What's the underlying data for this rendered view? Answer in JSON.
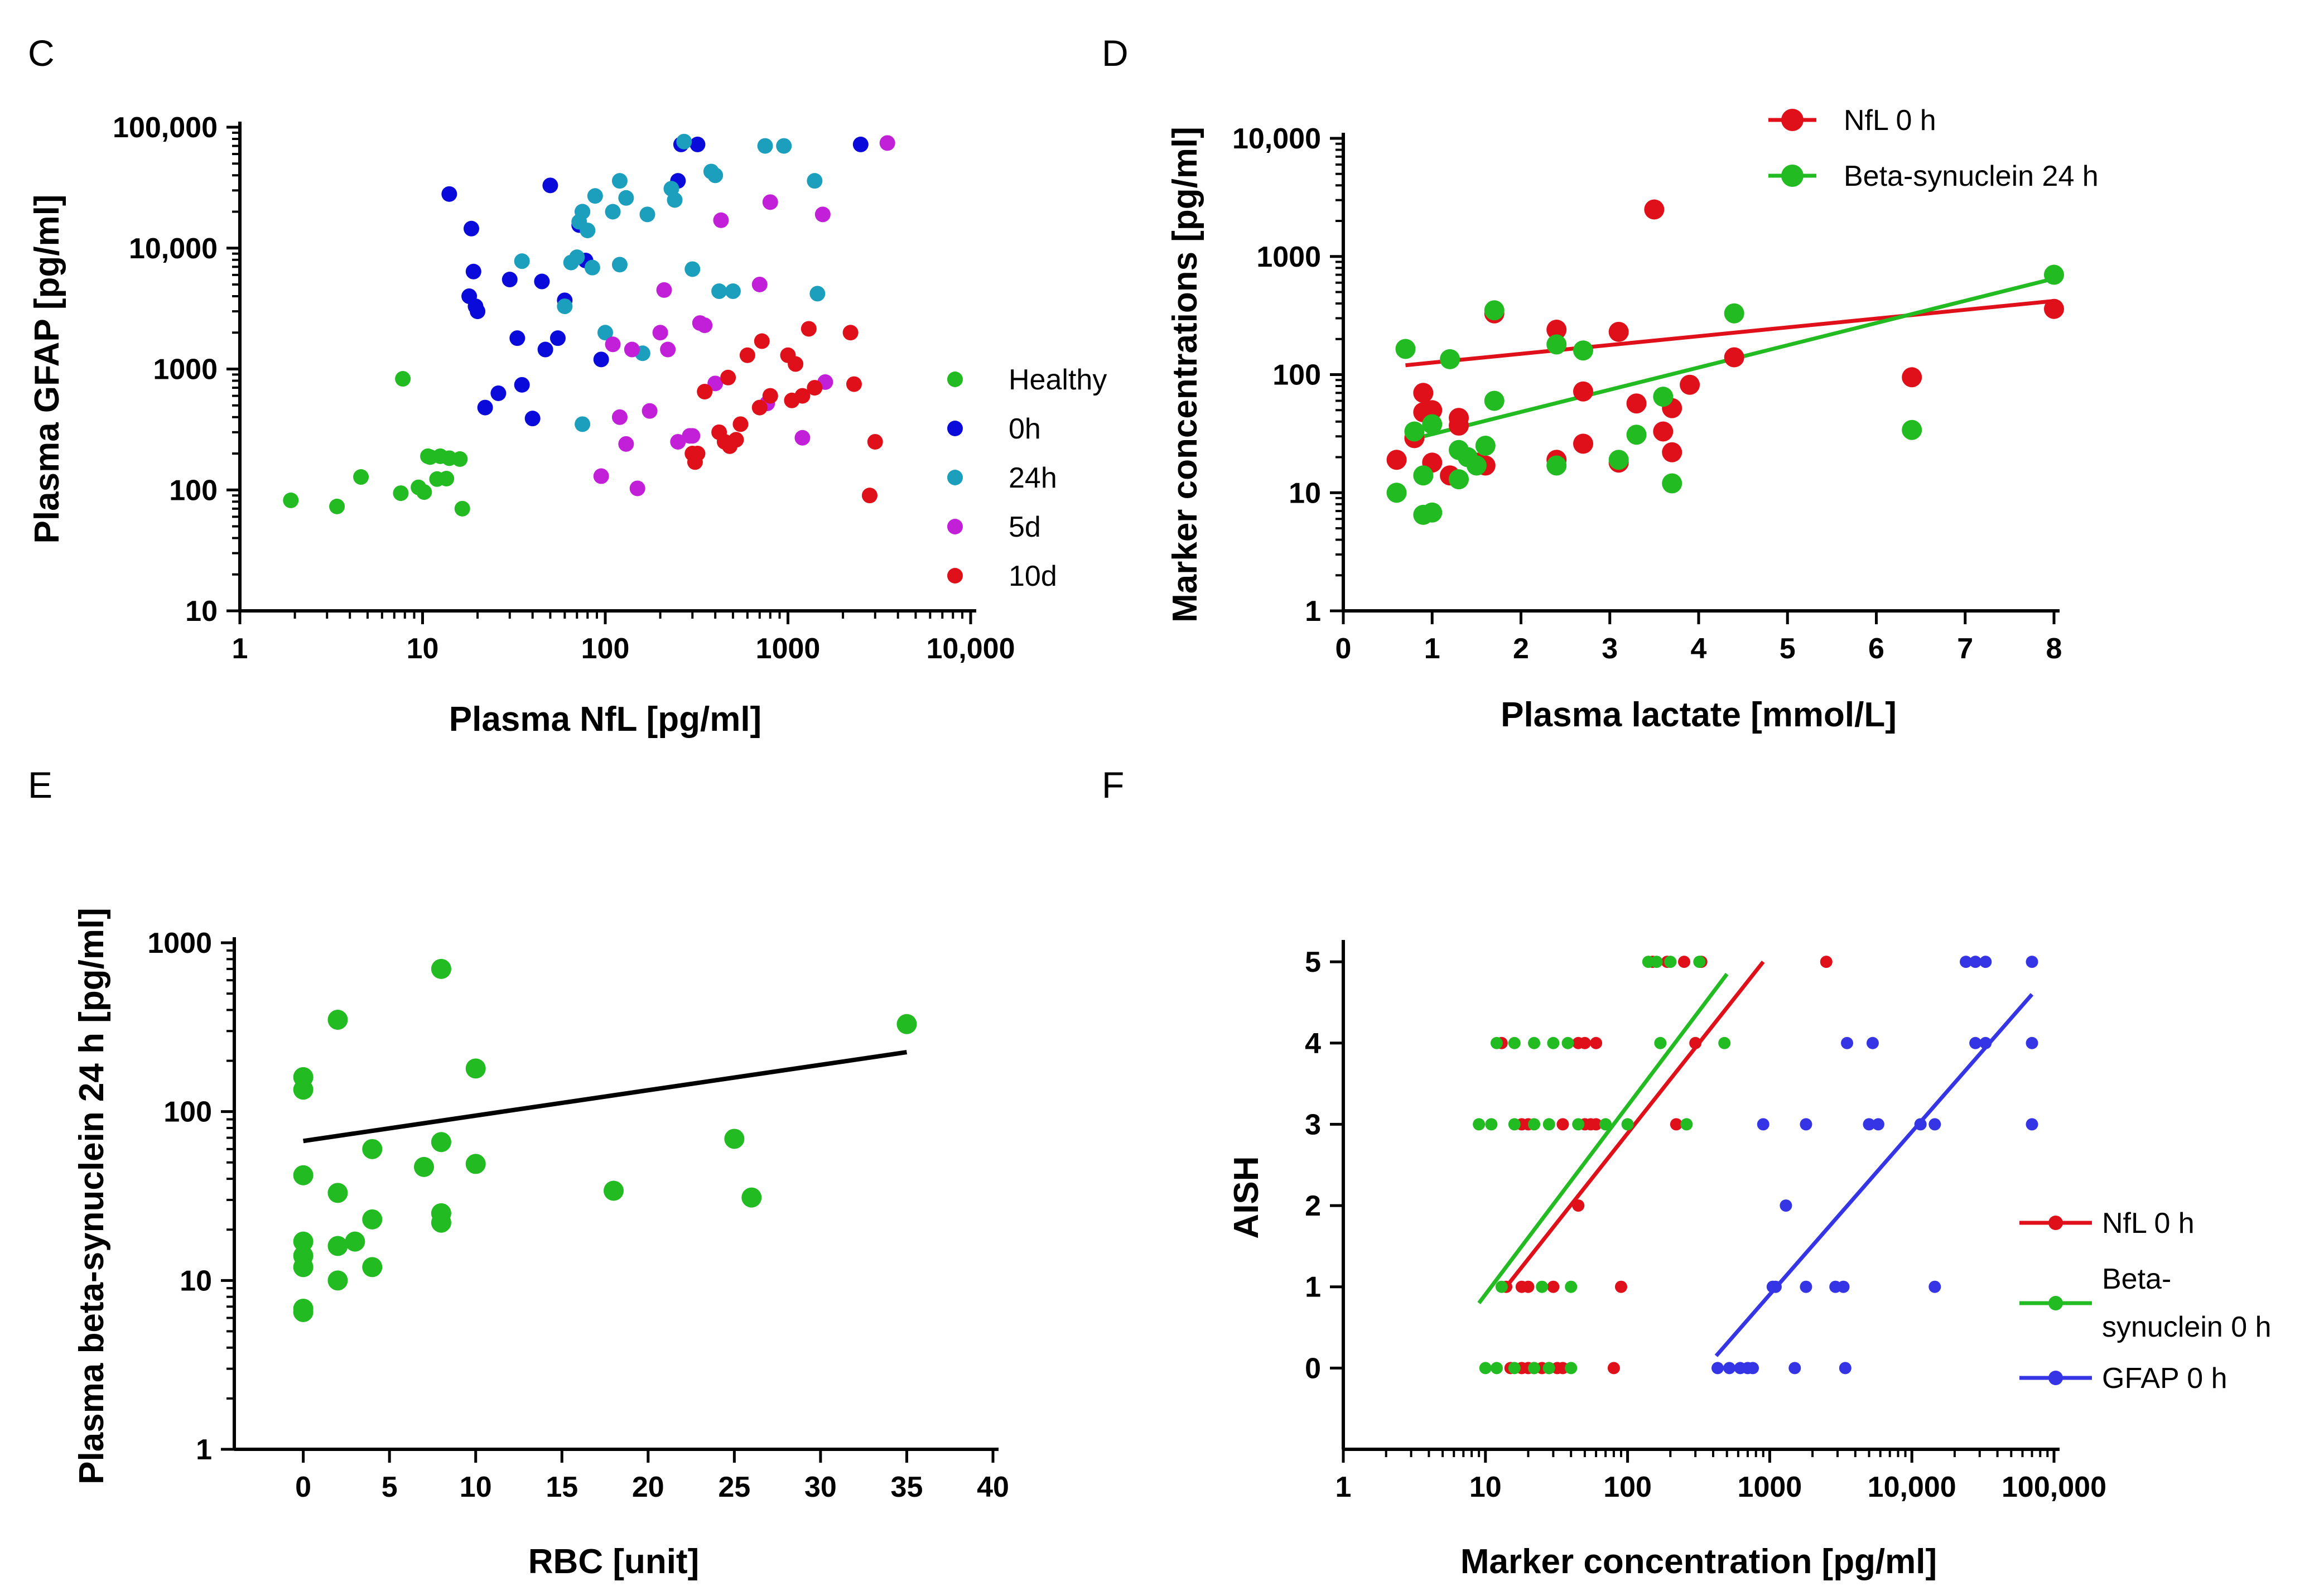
{
  "chart_data": [
    {
      "panel": "C",
      "type": "scatter",
      "xlabel": "Plasma NfL [pg/ml]",
      "ylabel": "Plasma GFAP [pg/ml]",
      "xscale": "log",
      "yscale": "log",
      "xlim": [
        1,
        10000
      ],
      "ylim": [
        10,
        100000
      ],
      "xticks": [
        1,
        10,
        100,
        1000,
        10000
      ],
      "xticklabels": [
        "1",
        "10",
        "100",
        "1000",
        "10,000"
      ],
      "yticks": [
        10,
        100,
        1000,
        10000,
        100000
      ],
      "yticklabels": [
        "10",
        "100",
        "1000",
        "10,000",
        "100,000"
      ],
      "legend_position": "right",
      "series": [
        {
          "name": "Healthy",
          "color": "#22bb22",
          "x": [
            1.9,
            3.4,
            4.6,
            7.6,
            7.8,
            9.5,
            10.2,
            10.7,
            11,
            12,
            12.5,
            13.5,
            14,
            16,
            16.5
          ],
          "y": [
            82,
            73,
            128,
            94,
            830,
            105,
            96,
            190,
            187,
            123,
            190,
            124,
            183,
            180,
            70
          ]
        },
        {
          "name": "0h",
          "color": "#0a0adb",
          "x": [
            14,
            18,
            18.5,
            19,
            19.5,
            20,
            22,
            26,
            30,
            33,
            35,
            40,
            45,
            47,
            50,
            55,
            60,
            72,
            75,
            78,
            95,
            250,
            260,
            320,
            2500
          ],
          "y": [
            28000,
            4000,
            14500,
            6400,
            3300,
            3000,
            480,
            630,
            5500,
            1800,
            740,
            390,
            5300,
            1450,
            33000,
            1800,
            3700,
            15500,
            20000,
            7900,
            1200,
            36000,
            72000,
            72000,
            72000
          ]
        },
        {
          "name": "24h",
          "color": "#1b9fbd",
          "x": [
            35,
            60,
            65,
            70,
            72,
            75,
            75,
            80,
            85,
            88,
            100,
            110,
            120,
            120,
            130,
            160,
            170,
            230,
            240,
            270,
            300,
            380,
            400,
            420,
            500,
            750,
            950,
            1400,
            1450
          ],
          "y": [
            7800,
            3300,
            7600,
            8400,
            16500,
            20000,
            350,
            14000,
            6900,
            27000,
            2000,
            20000,
            36000,
            7300,
            26000,
            1350,
            19000,
            31000,
            25000,
            76000,
            6700,
            43000,
            40000,
            4400,
            4400,
            70000,
            70000,
            36000,
            4200
          ]
        },
        {
          "name": "5d",
          "color": "#c21fd8",
          "x": [
            95,
            110,
            120,
            130,
            140,
            150,
            175,
            200,
            210,
            220,
            250,
            290,
            300,
            330,
            350,
            400,
            430,
            700,
            770,
            800,
            1200,
            1550,
            1600,
            3500
          ],
          "y": [
            130,
            1600,
            400,
            240,
            1450,
            103,
            450,
            2000,
            4500,
            1450,
            250,
            280,
            280,
            2400,
            2300,
            760,
            17000,
            5000,
            520,
            24000,
            270,
            19000,
            780,
            74000
          ]
        },
        {
          "name": "10d",
          "color": "#e0101a",
          "x": [
            300,
            310,
            320,
            350,
            420,
            450,
            470,
            480,
            520,
            550,
            600,
            700,
            720,
            800,
            1000,
            1050,
            1100,
            1200,
            1300,
            1400,
            2200,
            2300,
            2800,
            3000
          ],
          "y": [
            200,
            170,
            200,
            650,
            300,
            250,
            850,
            230,
            260,
            350,
            1300,
            480,
            1700,
            600,
            1300,
            550,
            1100,
            600,
            2150,
            700,
            2000,
            750,
            90,
            250
          ]
        }
      ]
    },
    {
      "panel": "D",
      "type": "scatter",
      "xlabel": "Plasma lactate [mmol/L]",
      "ylabel": "Marker concentrations [pg/ml]",
      "xscale": "linear",
      "yscale": "log",
      "xlim": [
        0,
        8
      ],
      "ylim": [
        1,
        10000
      ],
      "xticks": [
        0,
        1,
        2,
        3,
        4,
        5,
        6,
        7,
        8
      ],
      "xticklabels": [
        "0",
        "1",
        "2",
        "3",
        "4",
        "5",
        "6",
        "7",
        "8"
      ],
      "yticks": [
        1,
        10,
        100,
        1000,
        10000
      ],
      "yticklabels": [
        "1",
        "10",
        "100",
        "1000",
        "10,000"
      ],
      "legend_position": "top-right",
      "series": [
        {
          "name": "NfL 0 h",
          "color": "#e0101a",
          "x": [
            0.6,
            0.8,
            0.9,
            0.9,
            1,
            1,
            1.2,
            1.3,
            1.3,
            1.5,
            1.6,
            1.7,
            2.4,
            2.4,
            2.7,
            2.7,
            3.1,
            3.1,
            3.3,
            3.5,
            3.6,
            3.7,
            3.7,
            3.9,
            4.4,
            6.4,
            8
          ],
          "y": [
            19,
            29,
            48,
            70,
            18,
            50,
            14,
            43,
            37,
            18,
            17,
            330,
            240,
            19,
            72,
            26,
            230,
            18,
            57,
            2500,
            33,
            52,
            22,
            82,
            140,
            95,
            360
          ],
          "fit": {
            "x": [
              0.7,
              8
            ],
            "y": [
              120,
              420
            ]
          }
        },
        {
          "name": "Beta-synuclein 24 h",
          "color": "#22bb22",
          "x": [
            0.6,
            0.7,
            0.8,
            0.9,
            0.9,
            1,
            1,
            1.2,
            1.3,
            1.3,
            1.4,
            1.5,
            1.6,
            1.7,
            1.7,
            2.4,
            2.4,
            2.7,
            3.1,
            3.3,
            3.6,
            3.7,
            4.4,
            6.4,
            8
          ],
          "y": [
            10,
            165,
            33,
            14,
            6.5,
            6.8,
            38,
            135,
            23,
            13,
            20,
            17,
            25,
            350,
            60,
            180,
            17,
            160,
            19,
            31,
            65,
            12,
            330,
            34,
            700
          ],
          "fit": {
            "x": [
              0.9,
              8
            ],
            "y": [
              30,
              650
            ]
          }
        }
      ]
    },
    {
      "panel": "E",
      "type": "scatter",
      "xlabel": "RBC [unit]",
      "ylabel": "Plasma beta-synuclein 24 h [pg/ml]",
      "xscale": "linear",
      "yscale": "log",
      "xlim": [
        -4,
        40
      ],
      "ylim": [
        1,
        1000
      ],
      "xticks": [
        0,
        5,
        10,
        15,
        20,
        25,
        30,
        35,
        40
      ],
      "xticklabels": [
        "0",
        "5",
        "10",
        "15",
        "20",
        "25",
        "30",
        "35",
        "40"
      ],
      "yticks": [
        1,
        10,
        100,
        1000
      ],
      "yticklabels": [
        "1",
        "10",
        "100",
        "1000"
      ],
      "series": [
        {
          "name": "Beta-synuclein 24 h",
          "color": "#22bb22",
          "x": [
            0,
            0,
            0,
            0,
            0,
            0,
            0,
            0,
            2,
            2,
            2,
            2,
            3,
            4,
            4,
            4,
            7,
            8,
            8,
            8,
            8,
            10,
            10,
            18,
            25,
            26,
            35
          ],
          "y": [
            160,
            135,
            42,
            17,
            14,
            12,
            6.8,
            6.5,
            350,
            33,
            16,
            10,
            17,
            60,
            23,
            12,
            47,
            700,
            66,
            25,
            22,
            180,
            49,
            34,
            69,
            31,
            330
          ],
          "fit": {
            "x": [
              0,
              35
            ],
            "y": [
              67,
              225
            ]
          }
        }
      ]
    },
    {
      "panel": "F",
      "type": "scatter",
      "xlabel": "Marker concentration [pg/ml]",
      "ylabel": "AISH",
      "xscale": "log",
      "yscale": "linear",
      "xlim": [
        1,
        100000
      ],
      "ylim": [
        -1,
        5.2
      ],
      "xticks": [
        1,
        10,
        100,
        1000,
        10000,
        100000
      ],
      "xticklabels": [
        "1",
        "10",
        "100",
        "1000",
        "10,000",
        "100,000"
      ],
      "yticks": [
        0,
        1,
        2,
        3,
        4,
        5
      ],
      "yticklabels": [
        "0",
        "1",
        "2",
        "3",
        "4",
        "5"
      ],
      "legend_position": "bottom-right",
      "series": [
        {
          "name": "NfL 0 h",
          "color": "#e0101a",
          "x": [
            15,
            18,
            20,
            22,
            25,
            28,
            32,
            35,
            80,
            14,
            18,
            20,
            30,
            90,
            45,
            13,
            45,
            50,
            60,
            18,
            20,
            35,
            50,
            55,
            60,
            220,
            300,
            150,
            190,
            250,
            330,
            2500
          ],
          "y": [
            0,
            0,
            0,
            0,
            0,
            0,
            0,
            0,
            0,
            1,
            1,
            1,
            1,
            1,
            2,
            4,
            4,
            4,
            4,
            3,
            3,
            3,
            3,
            3,
            3,
            3,
            4,
            5,
            5,
            5,
            5,
            5
          ],
          "fit": {
            "x": [
              14,
              900
            ],
            "y": [
              1,
              5
            ]
          }
        },
        {
          "name": "Beta-synuclein 0 h",
          "color": "#22bb22",
          "x": [
            10,
            12,
            16,
            22,
            28,
            40,
            13,
            25,
            40,
            9,
            11,
            16,
            22,
            28,
            45,
            70,
            100,
            260,
            12,
            16,
            22,
            30,
            38,
            170,
            480,
            140,
            160,
            200,
            320
          ],
          "y": [
            0,
            0,
            0,
            0,
            0,
            0,
            1,
            1,
            1,
            3,
            3,
            3,
            3,
            3,
            3,
            3,
            3,
            3,
            4,
            4,
            4,
            4,
            4,
            4,
            4,
            5,
            5,
            5,
            5
          ],
          "fit": {
            "x": [
              9,
              500
            ],
            "y": [
              0.8,
              4.85
            ]
          }
        },
        {
          "name": "GFAP 0 h",
          "color": "#3535e5",
          "x": [
            430,
            520,
            620,
            700,
            760,
            1500,
            3400,
            1050,
            1100,
            1800,
            2900,
            3300,
            14500,
            1300,
            900,
            1800,
            5000,
            5800,
            11500,
            14500,
            70000,
            3500,
            5300,
            28000,
            33000,
            70000,
            24000,
            28000,
            33000,
            70000
          ],
          "y": [
            0,
            0,
            0,
            0,
            0,
            0,
            0,
            1,
            1,
            1,
            1,
            1,
            1,
            2,
            3,
            3,
            3,
            3,
            3,
            3,
            3,
            4,
            4,
            4,
            4,
            4,
            5,
            5,
            5,
            5
          ],
          "fit": {
            "x": [
              420,
              70000
            ],
            "y": [
              0.15,
              4.6
            ]
          }
        }
      ]
    }
  ]
}
